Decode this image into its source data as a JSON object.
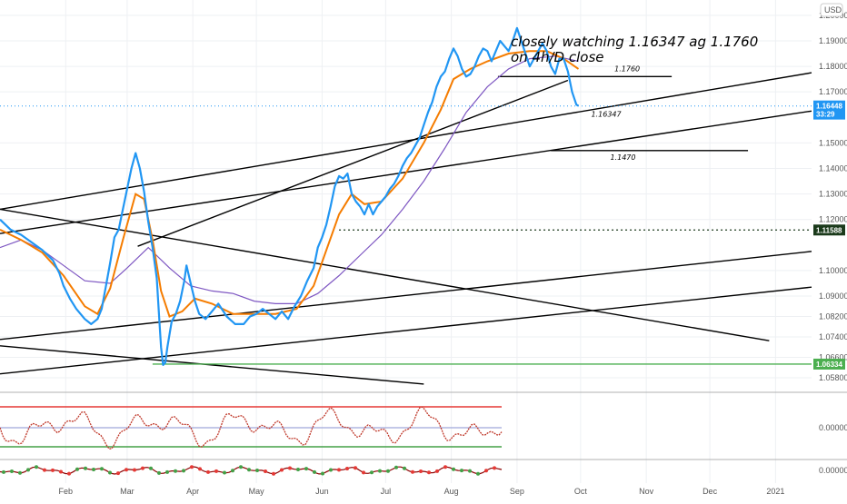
{
  "chart_data": {
    "type": "line",
    "currency": "USD",
    "annotation": [
      "closely watching 1.16347 ag 1.1760",
      "on 4h/D close"
    ],
    "x_labels": [
      "Feb",
      "Mar",
      "Apr",
      "May",
      "Jun",
      "Jul",
      "Aug",
      "Sep",
      "Oct",
      "Nov",
      "Dec",
      "2021"
    ],
    "x_label_days": [
      31,
      60,
      91,
      121,
      152,
      182,
      213,
      244,
      274,
      305,
      335,
      366
    ],
    "x_range_days": [
      0,
      383
    ],
    "y_range": [
      1.053,
      1.206
    ],
    "price_ticks": [
      "1.20000",
      "1.19000",
      "1.18000",
      "1.17000",
      "1.15000",
      "1.14000",
      "1.13000",
      "1.12000",
      "1.10000",
      "1.09000",
      "1.08200",
      "1.07400",
      "1.06600",
      "1.05800"
    ],
    "price_tick_values": [
      1.2,
      1.19,
      1.18,
      1.17,
      1.15,
      1.14,
      1.13,
      1.12,
      1.1,
      1.09,
      1.082,
      1.074,
      1.066,
      1.058
    ],
    "price_tags": [
      {
        "text": "1.16448",
        "value": 1.16448,
        "color": "#2196f3"
      },
      {
        "text": "33:29",
        "value": 1.1613,
        "color": "#2196f3"
      },
      {
        "text": "1.11588",
        "value": 1.11588,
        "color": "#1b3a1b"
      },
      {
        "text": "1.06334",
        "value": 1.06334,
        "color": "#4caf50"
      }
    ],
    "price_points": [
      [
        0,
        1.12
      ],
      [
        5,
        1.116
      ],
      [
        10,
        1.114
      ],
      [
        15,
        1.111
      ],
      [
        20,
        1.108
      ],
      [
        25,
        1.104
      ],
      [
        28,
        1.099
      ],
      [
        30,
        1.094
      ],
      [
        33,
        1.089
      ],
      [
        36,
        1.085
      ],
      [
        40,
        1.081
      ],
      [
        43,
        1.079
      ],
      [
        46,
        1.081
      ],
      [
        48,
        1.085
      ],
      [
        50,
        1.094
      ],
      [
        52,
        1.103
      ],
      [
        54,
        1.113
      ],
      [
        56,
        1.116
      ],
      [
        58,
        1.124
      ],
      [
        60,
        1.132
      ],
      [
        62,
        1.14
      ],
      [
        64,
        1.146
      ],
      [
        66,
        1.14
      ],
      [
        68,
        1.131
      ],
      [
        70,
        1.119
      ],
      [
        72,
        1.109
      ],
      [
        74,
        1.097
      ],
      [
        75,
        1.083
      ],
      [
        76,
        1.07
      ],
      [
        77,
        1.063
      ],
      [
        78,
        1.064
      ],
      [
        79,
        1.07
      ],
      [
        81,
        1.08
      ],
      [
        83,
        1.083
      ],
      [
        85,
        1.088
      ],
      [
        87,
        1.096
      ],
      [
        88,
        1.102
      ],
      [
        90,
        1.095
      ],
      [
        92,
        1.088
      ],
      [
        94,
        1.083
      ],
      [
        97,
        1.081
      ],
      [
        100,
        1.084
      ],
      [
        103,
        1.087
      ],
      [
        107,
        1.082
      ],
      [
        111,
        1.079
      ],
      [
        115,
        1.079
      ],
      [
        118,
        1.082
      ],
      [
        121,
        1.083
      ],
      [
        124,
        1.085
      ],
      [
        127,
        1.083
      ],
      [
        130,
        1.081
      ],
      [
        133,
        1.084
      ],
      [
        136,
        1.081
      ],
      [
        139,
        1.086
      ],
      [
        142,
        1.09
      ],
      [
        145,
        1.096
      ],
      [
        148,
        1.101
      ],
      [
        150,
        1.109
      ],
      [
        152,
        1.113
      ],
      [
        154,
        1.118
      ],
      [
        156,
        1.125
      ],
      [
        158,
        1.133
      ],
      [
        160,
        1.137
      ],
      [
        162,
        1.136
      ],
      [
        164,
        1.138
      ],
      [
        166,
        1.13
      ],
      [
        168,
        1.127
      ],
      [
        170,
        1.125
      ],
      [
        172,
        1.122
      ],
      [
        174,
        1.126
      ],
      [
        176,
        1.122
      ],
      [
        178,
        1.125
      ],
      [
        180,
        1.127
      ],
      [
        182,
        1.129
      ],
      [
        184,
        1.132
      ],
      [
        186,
        1.134
      ],
      [
        188,
        1.137
      ],
      [
        190,
        1.141
      ],
      [
        192,
        1.144
      ],
      [
        194,
        1.146
      ],
      [
        196,
        1.149
      ],
      [
        198,
        1.152
      ],
      [
        200,
        1.157
      ],
      [
        202,
        1.162
      ],
      [
        204,
        1.166
      ],
      [
        206,
        1.172
      ],
      [
        208,
        1.176
      ],
      [
        210,
        1.178
      ],
      [
        212,
        1.183
      ],
      [
        214,
        1.187
      ],
      [
        216,
        1.184
      ],
      [
        218,
        1.179
      ],
      [
        220,
        1.176
      ],
      [
        222,
        1.177
      ],
      [
        224,
        1.18
      ],
      [
        226,
        1.184
      ],
      [
        228,
        1.187
      ],
      [
        230,
        1.186
      ],
      [
        232,
        1.182
      ],
      [
        234,
        1.186
      ],
      [
        236,
        1.19
      ],
      [
        238,
        1.188
      ],
      [
        240,
        1.186
      ],
      [
        242,
        1.19
      ],
      [
        244,
        1.195
      ],
      [
        246,
        1.19
      ],
      [
        248,
        1.185
      ],
      [
        250,
        1.18
      ],
      [
        252,
        1.183
      ],
      [
        254,
        1.186
      ],
      [
        256,
        1.189
      ],
      [
        258,
        1.186
      ],
      [
        260,
        1.18
      ],
      [
        262,
        1.177
      ],
      [
        264,
        1.183
      ],
      [
        266,
        1.183
      ],
      [
        268,
        1.178
      ],
      [
        270,
        1.17
      ],
      [
        272,
        1.165
      ],
      [
        273,
        1.1645
      ]
    ],
    "ma_fast": [
      [
        0,
        1.116
      ],
      [
        10,
        1.112
      ],
      [
        20,
        1.107
      ],
      [
        30,
        1.098
      ],
      [
        40,
        1.086
      ],
      [
        46,
        1.083
      ],
      [
        52,
        1.093
      ],
      [
        58,
        1.112
      ],
      [
        64,
        1.13
      ],
      [
        68,
        1.128
      ],
      [
        72,
        1.112
      ],
      [
        76,
        1.092
      ],
      [
        80,
        1.082
      ],
      [
        86,
        1.084
      ],
      [
        92,
        1.089
      ],
      [
        100,
        1.087
      ],
      [
        110,
        1.083
      ],
      [
        120,
        1.083
      ],
      [
        130,
        1.083
      ],
      [
        140,
        1.085
      ],
      [
        148,
        1.094
      ],
      [
        154,
        1.108
      ],
      [
        160,
        1.122
      ],
      [
        166,
        1.13
      ],
      [
        172,
        1.126
      ],
      [
        180,
        1.127
      ],
      [
        190,
        1.136
      ],
      [
        200,
        1.15
      ],
      [
        208,
        1.163
      ],
      [
        214,
        1.175
      ],
      [
        222,
        1.179
      ],
      [
        230,
        1.182
      ],
      [
        240,
        1.185
      ],
      [
        250,
        1.186
      ],
      [
        258,
        1.186
      ],
      [
        266,
        1.183
      ],
      [
        273,
        1.179
      ]
    ],
    "ma_slow": [
      [
        0,
        1.109
      ],
      [
        10,
        1.112
      ],
      [
        20,
        1.108
      ],
      [
        30,
        1.102
      ],
      [
        40,
        1.096
      ],
      [
        52,
        1.095
      ],
      [
        60,
        1.101
      ],
      [
        70,
        1.109
      ],
      [
        80,
        1.101
      ],
      [
        90,
        1.094
      ],
      [
        100,
        1.092
      ],
      [
        110,
        1.091
      ],
      [
        120,
        1.088
      ],
      [
        130,
        1.087
      ],
      [
        140,
        1.087
      ],
      [
        150,
        1.091
      ],
      [
        160,
        1.098
      ],
      [
        170,
        1.106
      ],
      [
        180,
        1.114
      ],
      [
        190,
        1.124
      ],
      [
        200,
        1.135
      ],
      [
        210,
        1.148
      ],
      [
        220,
        1.162
      ],
      [
        230,
        1.172
      ],
      [
        240,
        1.179
      ],
      [
        250,
        1.183
      ],
      [
        262,
        1.184
      ],
      [
        273,
        1.182
      ]
    ],
    "horizontal_levels": [
      {
        "label": "1.1760",
        "value": 1.176
      },
      {
        "label": "1.16347",
        "value": 1.16347
      },
      {
        "label": "1.1470",
        "value": 1.147
      }
    ],
    "support_line": 1.06334,
    "resistance_line": 1.11588,
    "trendlines": [
      [
        0,
        1.124,
        383,
        1.1775
      ],
      [
        0,
        1.1145,
        383,
        1.1625
      ],
      [
        0,
        1.124,
        363,
        1.0725
      ],
      [
        0,
        1.073,
        383,
        1.1075
      ],
      [
        0,
        1.0595,
        383,
        1.0935
      ],
      [
        0,
        1.0705,
        200,
        1.0555
      ],
      [
        65,
        1.1095,
        268,
        1.1745
      ]
    ]
  }
}
